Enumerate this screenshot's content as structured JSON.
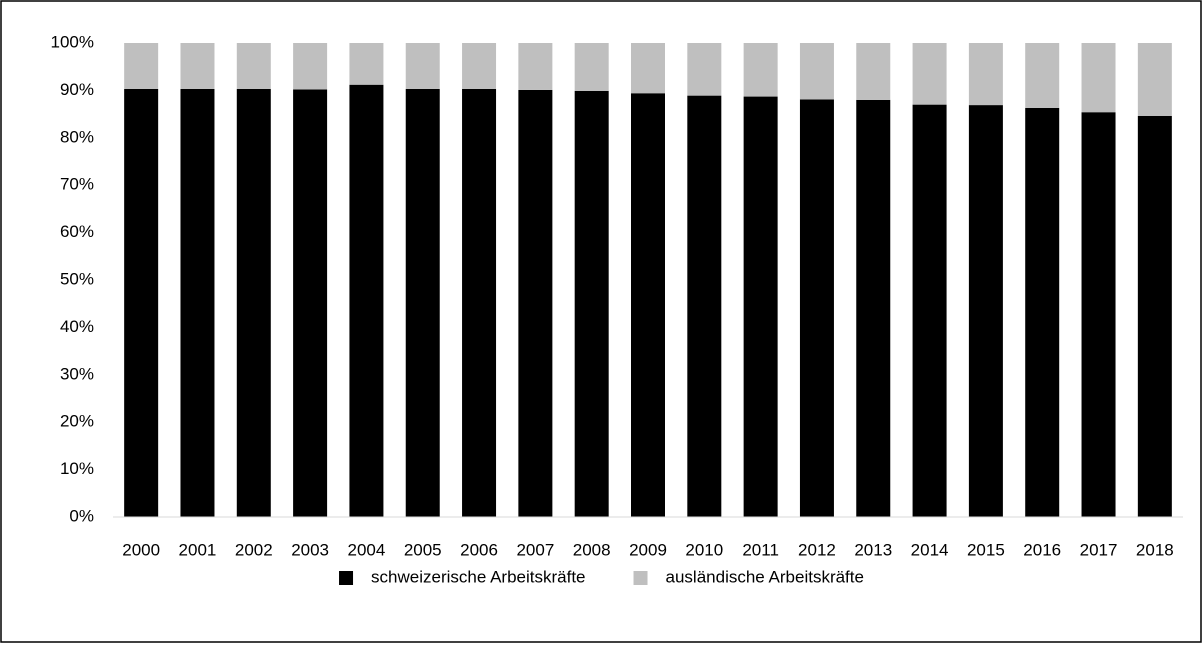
{
  "chart_data": {
    "type": "bar",
    "stacked": true,
    "categories": [
      "2000",
      "2001",
      "2002",
      "2003",
      "2004",
      "2005",
      "2006",
      "2007",
      "2008",
      "2009",
      "2010",
      "2011",
      "2012",
      "2013",
      "2014",
      "2015",
      "2016",
      "2017",
      "2018"
    ],
    "series": [
      {
        "name": "schweizerische Arbeitskräfte",
        "color": "#000000",
        "values": [
          90.3,
          90.3,
          90.3,
          90.2,
          91.2,
          90.3,
          90.3,
          90.1,
          89.9,
          89.4,
          88.9,
          88.7,
          88.1,
          88.0,
          87.0,
          86.9,
          86.3,
          85.4,
          84.6
        ]
      },
      {
        "name": "ausländische Arbeitskräfte",
        "color": "#bfbfbf",
        "values": [
          9.7,
          9.7,
          9.7,
          9.8,
          8.8,
          9.7,
          9.7,
          9.9,
          10.1,
          10.6,
          11.1,
          11.3,
          11.9,
          12.0,
          13.0,
          13.1,
          13.7,
          14.6,
          15.4
        ]
      }
    ],
    "ylim": [
      0,
      100
    ],
    "yticks": [
      {
        "value": 0,
        "label": "0%"
      },
      {
        "value": 10,
        "label": "10%"
      },
      {
        "value": 20,
        "label": "20%"
      },
      {
        "value": 30,
        "label": "30%"
      },
      {
        "value": 40,
        "label": "40%"
      },
      {
        "value": 50,
        "label": "50%"
      },
      {
        "value": 60,
        "label": "60%"
      },
      {
        "value": 70,
        "label": "70%"
      },
      {
        "value": 80,
        "label": "80%"
      },
      {
        "value": 90,
        "label": "90%"
      },
      {
        "value": 100,
        "label": "100%"
      }
    ],
    "grid": false,
    "legend": "bottom"
  }
}
